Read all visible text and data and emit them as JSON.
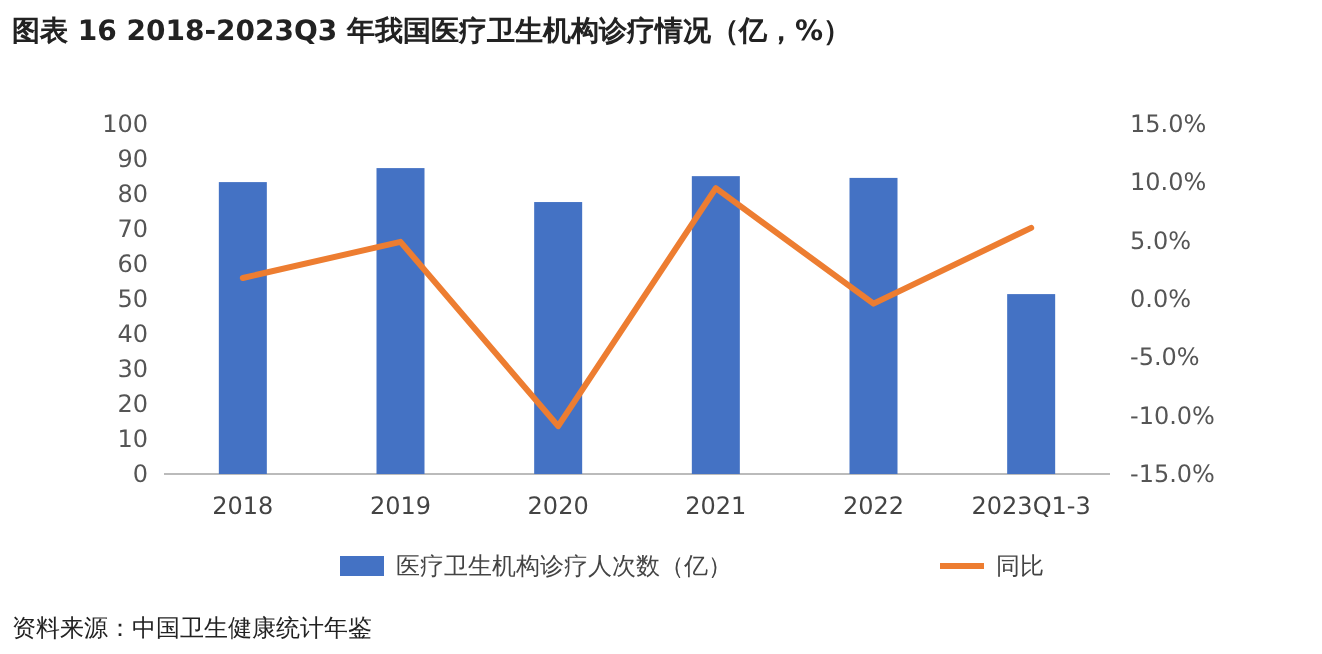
{
  "chart_data": {
    "type": "bar",
    "title": "图表 16 2018-2023Q3 年我国医疗卫生机构诊疗情况（亿，%）",
    "categories": [
      "2018",
      "2019",
      "2020",
      "2021",
      "2022",
      "2023Q1-3"
    ],
    "series": [
      {
        "name": "医疗卫生机构诊疗人次数（亿）",
        "color": "#4472c4",
        "values": [
          83.4,
          87.4,
          77.7,
          85.1,
          84.6,
          51.4
        ]
      },
      {
        "name": "同比",
        "type": "line",
        "axis": "y2",
        "color": "#ed7d31",
        "values": [
          1.8,
          4.9,
          -10.9,
          9.5,
          -0.4,
          6.1
        ]
      }
    ],
    "ylim": [
      0,
      100
    ],
    "yticks": [
      0,
      10,
      20,
      30,
      40,
      50,
      60,
      70,
      80,
      90,
      100
    ],
    "y2lim": [
      -15,
      15
    ],
    "y2ticks": [
      {
        "value": -15,
        "label": "-15.0%"
      },
      {
        "value": -10,
        "label": "-10.0%"
      },
      {
        "value": -5,
        "label": "-5.0%"
      },
      {
        "value": 0,
        "label": "0.0%"
      },
      {
        "value": 5,
        "label": "5.0%"
      },
      {
        "value": 10,
        "label": "10.0%"
      },
      {
        "value": 15,
        "label": "15.0%"
      }
    ],
    "legend": "bottom",
    "grid": false,
    "annotations": [
      "资料来源：中国卫生健康统计年鉴"
    ]
  }
}
